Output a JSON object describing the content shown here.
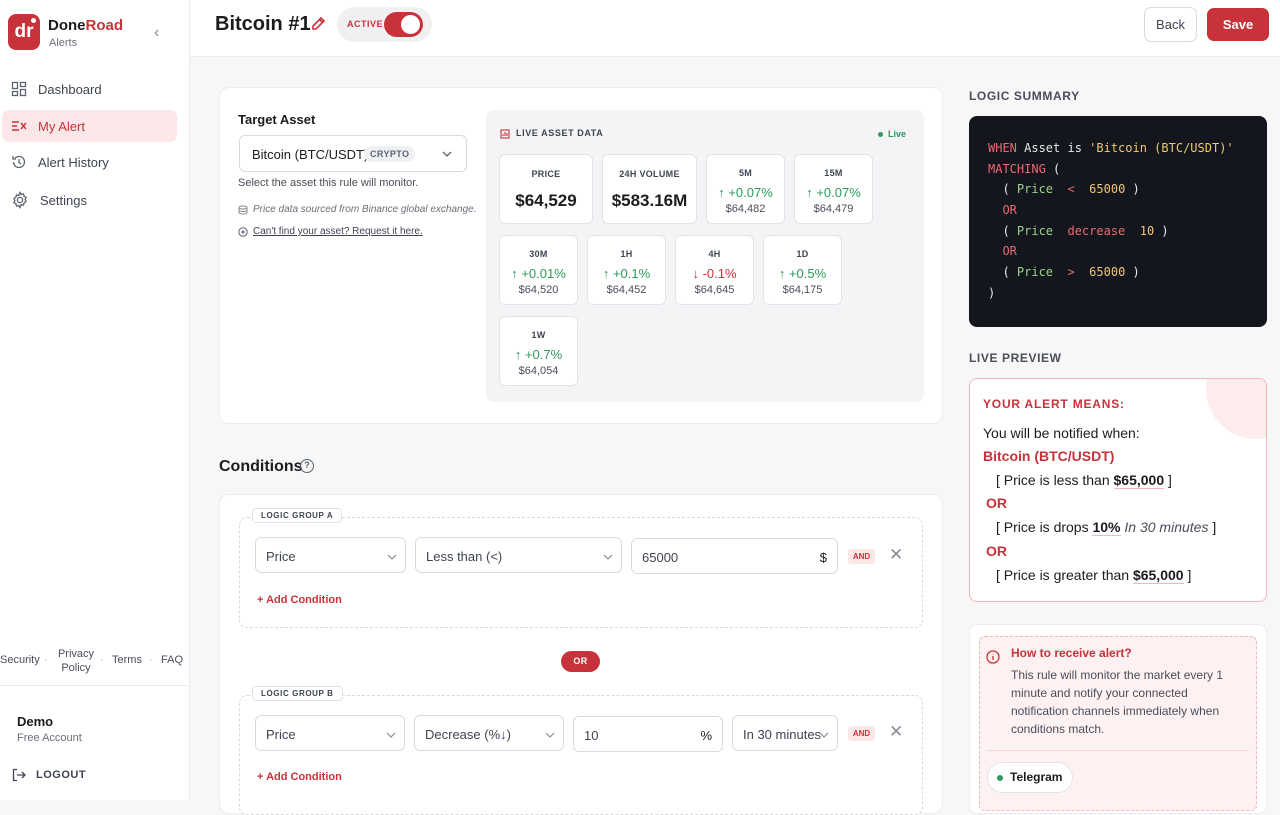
{
  "brand": {
    "name_a": "Done",
    "name_b": "Road",
    "sub": "Alerts",
    "logo": "dr"
  },
  "nav": [
    {
      "label": "Dashboard",
      "icon": "grid-icon"
    },
    {
      "label": "My Alert",
      "icon": "alert-list-icon",
      "active": true
    },
    {
      "label": "Alert History",
      "icon": "history-icon"
    },
    {
      "label": "Settings",
      "icon": "gear-icon"
    }
  ],
  "footer_links": [
    "Security",
    "Privacy Policy",
    "Terms",
    "FAQ"
  ],
  "user": {
    "name": "Demo",
    "plan": "Free Account",
    "logout": "LOGOUT"
  },
  "header": {
    "title": "Bitcoin #1",
    "toggle_label": "ACTIVE",
    "back": "Back",
    "save": "Save"
  },
  "target": {
    "label": "Target Asset",
    "asset": "Bitcoin (BTC/USDT)",
    "badge": "CRYPTO",
    "help": "Select the asset this rule will monitor.",
    "source_note": "Price data sourced from Binance global exchange.",
    "request_link": "Can't find your asset? Request it here."
  },
  "live": {
    "title": "LIVE ASSET DATA",
    "status": "Live",
    "price": {
      "label": "PRICE",
      "value": "$64,529"
    },
    "volume": {
      "label": "24H VOLUME",
      "value": "$583.16M"
    },
    "tiles": [
      {
        "label": "5M",
        "change": "+0.07%",
        "dir": "up",
        "price": "$64,482"
      },
      {
        "label": "15M",
        "change": "+0.07%",
        "dir": "up",
        "price": "$64,479"
      },
      {
        "label": "30M",
        "change": "+0.01%",
        "dir": "up",
        "price": "$64,520"
      },
      {
        "label": "1H",
        "change": "+0.1%",
        "dir": "up",
        "price": "$64,452"
      },
      {
        "label": "4H",
        "change": "-0.1%",
        "dir": "down",
        "price": "$64,645"
      },
      {
        "label": "1D",
        "change": "+0.5%",
        "dir": "up",
        "price": "$64,175"
      },
      {
        "label": "1W",
        "change": "+0.7%",
        "dir": "up",
        "price": "$64,054"
      }
    ]
  },
  "conditions": {
    "title": "Conditions",
    "group_a": {
      "label": "LOGIC GROUP A",
      "field": "Price",
      "operator": "Less than (<)",
      "value": "65000",
      "suffix": "$",
      "joiner": "AND",
      "add": "+ Add Condition"
    },
    "or_label": "OR",
    "group_b": {
      "label": "LOGIC GROUP B",
      "field": "Price",
      "operator": "Decrease (%↓)",
      "value": "10",
      "suffix": "%",
      "window": "In 30 minutes",
      "joiner": "AND",
      "add": "+ Add Condition"
    }
  },
  "summary": {
    "title": "LOGIC SUMMARY",
    "line1_kw": "WHEN",
    "line1_mid": " Asset is ",
    "line1_str": "'Bitcoin (BTC/USDT)'",
    "line2_kw": "MATCHING",
    "line2_rest": " (",
    "c1_field": "Price",
    "c1_op": "<",
    "c1_val": "65000",
    "or1": "OR",
    "c2_field": "Price",
    "c2_op": "decrease",
    "c2_val": "10",
    "or2": "OR",
    "c3_field": "Price",
    "c3_op": ">",
    "c3_val": "65000",
    "close": ")"
  },
  "preview": {
    "title": "LIVE PREVIEW",
    "heading": "YOUR ALERT MEANS:",
    "intro": "You will be notified when:",
    "asset": "Bitcoin (BTC/USDT)",
    "l1_a": "[ Price is less than ",
    "l1_b": "$65,000",
    "l1_c": " ]",
    "or1": "OR",
    "l2_a": "[ Price is drops ",
    "l2_b": "10%",
    "l2_it": "In 30 minutes",
    "l2_c": " ]",
    "or2": "OR",
    "l3_a": "[ Price is greater than ",
    "l3_b": "$65,000",
    "l3_c": " ]"
  },
  "how": {
    "title": "How to receive alert?",
    "text": "This rule will monitor the market every 1 minute and notify your connected notification channels immediately when conditions match.",
    "channel": "Telegram"
  },
  "colors": {
    "accent": "#c8323a",
    "up": "#2e9a5c",
    "code_bg": "#14161d"
  }
}
